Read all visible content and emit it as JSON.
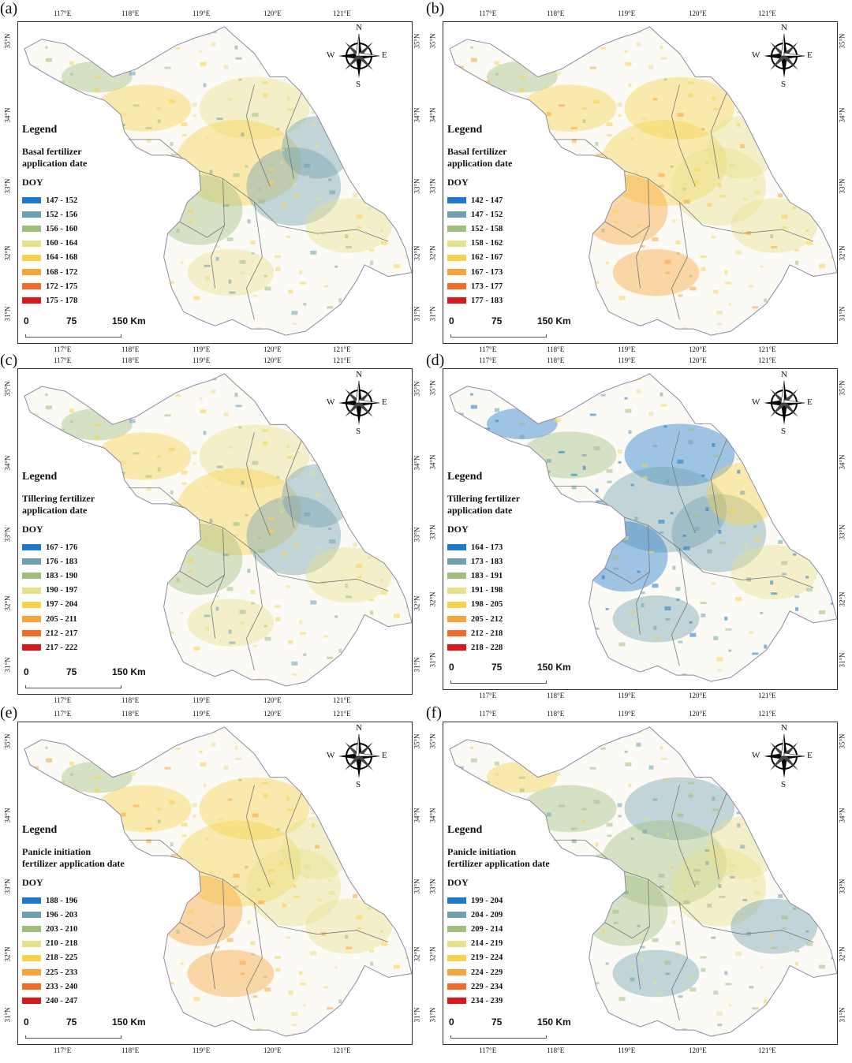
{
  "panels": [
    {
      "label": "(a)",
      "legend_title": "Legend",
      "legend_subtitle": "Basal fertilizer\napplication date",
      "unit": "DOY",
      "classes": [
        "147 - 152",
        "152 - 156",
        "156 - 160",
        "160 - 164",
        "164 - 168",
        "168 - 172",
        "172 - 175",
        "175 - 178"
      ],
      "dominant": "yellow-mixed",
      "top_ticks": true,
      "bottom_ticks": true
    },
    {
      "label": "(b)",
      "legend_title": "Legend",
      "legend_subtitle": "Basal fertilizer\napplication date",
      "unit": "DOY",
      "classes": [
        "142 - 147",
        "147 - 152",
        "152 - 158",
        "158 - 162",
        "162 - 167",
        "167 - 173",
        "173 - 177",
        "177 - 183"
      ],
      "dominant": "orange",
      "top_ticks": true,
      "bottom_ticks": true
    },
    {
      "label": "(c)",
      "legend_title": "Legend",
      "legend_subtitle": "Tillering fertilizer\napplication date",
      "unit": "DOY",
      "classes": [
        "167 - 176",
        "176 - 183",
        "183 - 190",
        "190 - 197",
        "197 - 204",
        "205 - 211",
        "212 - 217",
        "217 - 222"
      ],
      "dominant": "yellow-mixed",
      "top_ticks": true,
      "bottom_ticks": true
    },
    {
      "label": "(d)",
      "legend_title": "Legend",
      "legend_subtitle": "Tillering fertilizer\napplication date",
      "unit": "DOY",
      "classes": [
        "164 - 173",
        "173 - 183",
        "183 - 191",
        "191 - 198",
        "198 - 205",
        "205 - 212",
        "212 - 218",
        "218 - 228"
      ],
      "dominant": "blue",
      "top_ticks": true,
      "bottom_ticks": true
    },
    {
      "label": "(e)",
      "legend_title": "Legend",
      "legend_subtitle": "Panicle initiation\nfertilizer application date",
      "unit": "DOY",
      "classes": [
        "188 - 196",
        "196 - 203",
        "203 - 210",
        "210 - 218",
        "218 - 225",
        "225 - 233",
        "233 - 240",
        "240 - 247"
      ],
      "dominant": "orange",
      "top_ticks": true,
      "bottom_ticks": true
    },
    {
      "label": "(f)",
      "legend_title": "Legend",
      "legend_subtitle": "Panicle initiation\nfertilizer application date",
      "unit": "DOY",
      "classes": [
        "199 - 204",
        "204 - 209",
        "209 - 214",
        "214 - 219",
        "219 - 224",
        "224 - 229",
        "229 - 234",
        "234 - 239"
      ],
      "dominant": "green-blue",
      "top_ticks": true,
      "bottom_ticks": true
    }
  ],
  "legend_colors": [
    "#1f78c8",
    "#6fa0b0",
    "#9fbf7f",
    "#e6e08a",
    "#f8d14a",
    "#f7a43a",
    "#f06a28",
    "#d7191c"
  ],
  "lon_ticks": [
    "117°E",
    "118°E",
    "119°E",
    "120°E",
    "121°E"
  ],
  "lat_ticks": [
    "35°N",
    "34°N",
    "33°N",
    "32°N",
    "31°N"
  ],
  "compass": {
    "n": "N",
    "s": "S",
    "e": "E",
    "w": "W"
  },
  "scale": {
    "zero": "0",
    "mid": "75",
    "end": "150 Km"
  }
}
